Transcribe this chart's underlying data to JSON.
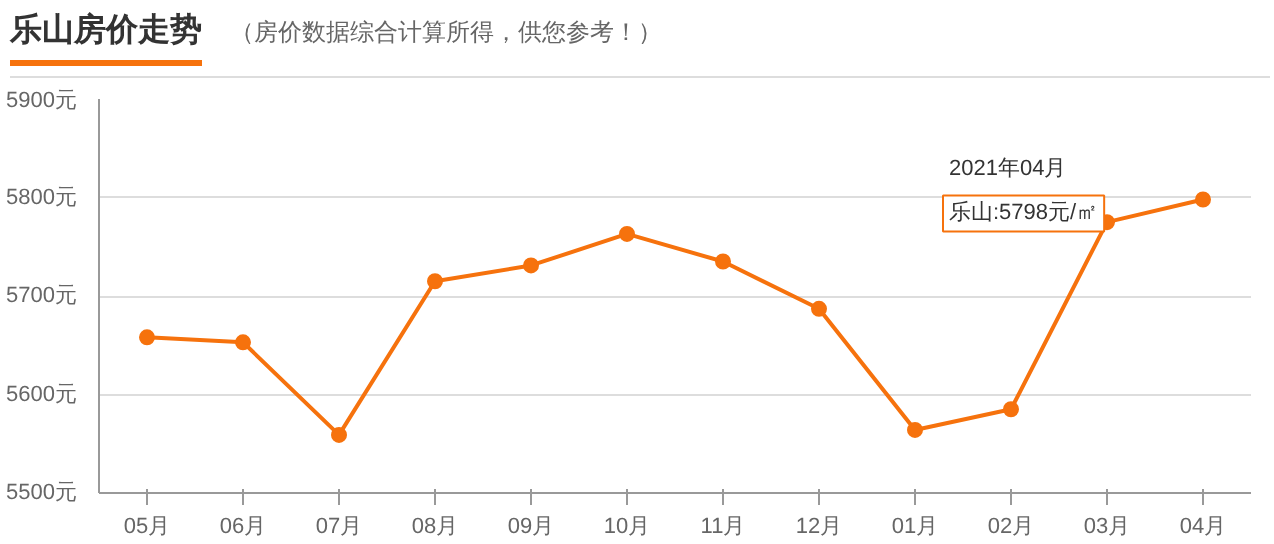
{
  "chart_data": {
    "type": "line",
    "title": "乐山房价走势",
    "subtitle": "（房价数据综合计算所得，供您参考！）",
    "categories": [
      "05月",
      "06月",
      "07月",
      "08月",
      "09月",
      "10月",
      "11月",
      "12月",
      "01月",
      "02月",
      "03月",
      "04月"
    ],
    "series": [
      {
        "name": "乐山",
        "color": "#f6720d",
        "values": [
          5658,
          5653,
          5559,
          5715,
          5731,
          5763,
          5735,
          5687,
          5564,
          5585,
          5775,
          5798
        ],
        "value_labels": [
          null,
          null,
          null,
          null,
          null,
          null,
          null,
          null,
          null,
          null,
          null,
          ":5798元/㎡"
        ]
      }
    ],
    "ylim": [
      5500,
      5900
    ],
    "yticks": [
      {
        "value": 5500,
        "label": "5500元"
      },
      {
        "value": 5600,
        "label": "5600元"
      },
      {
        "value": 5700,
        "label": "5700元"
      },
      {
        "value": 5800,
        "label": "5800元"
      },
      {
        "value": 5900,
        "label": "5900元"
      }
    ],
    "grid": "y",
    "marker": "circle",
    "line_style": "solid",
    "annotations": [
      "2021年04月"
    ]
  }
}
